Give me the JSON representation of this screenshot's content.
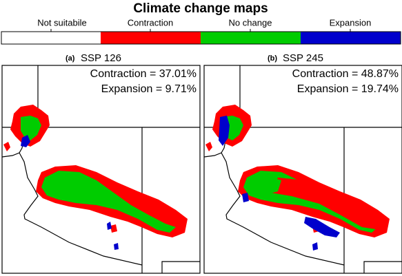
{
  "title": "Climate change maps",
  "legend": [
    "Not suitabile",
    "Contraction",
    "No change",
    "Expansion"
  ],
  "panels": [
    {
      "tag": "(a)",
      "scenario": "SSP 126",
      "contraction": "Contraction = 37.01%",
      "expansion": "Expansion = 9.71%"
    },
    {
      "tag": "(b)",
      "scenario": "SSP 245",
      "contraction": "Contraction = 48.87%",
      "expansion": "Expansion = 19.74%"
    }
  ]
}
